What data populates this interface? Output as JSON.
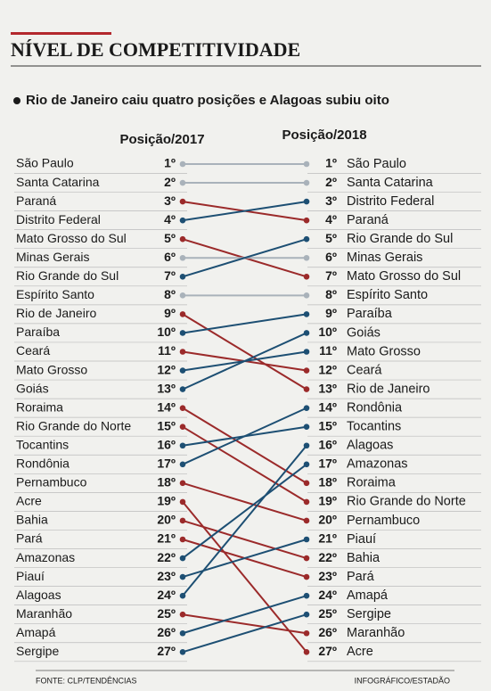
{
  "chart_data": {
    "type": "slope",
    "title": "NÍVEL DE COMPETITIVIDADE",
    "subtitle": "Rio de Janeiro caiu quatro posições e Alagoas subiu oito",
    "source": "FONTE: CLP/TENDÊNCIAS",
    "credit": "INFOGRÁFICO/ESTADÃO",
    "categories": [
      "São Paulo",
      "Santa Catarina",
      "Paraná",
      "Distrito Federal",
      "Mato Grosso do Sul",
      "Minas Gerais",
      "Rio Grande do Sul",
      "Espírito Santo",
      "Rio de Janeiro",
      "Paraíba",
      "Ceará",
      "Mato Grosso",
      "Goiás",
      "Roraima",
      "Rio Grande do Norte",
      "Tocantins",
      "Rondônia",
      "Pernambuco",
      "Acre",
      "Bahia",
      "Pará",
      "Amazonas",
      "Piauí",
      "Alagoas",
      "Maranhão",
      "Amapá",
      "Sergipe"
    ],
    "series": [
      {
        "name": "Posição/2017",
        "values": [
          1,
          2,
          3,
          4,
          5,
          6,
          7,
          8,
          9,
          10,
          11,
          12,
          13,
          14,
          15,
          16,
          17,
          18,
          19,
          20,
          21,
          22,
          23,
          24,
          25,
          26,
          27
        ],
        "value_labels": [
          "1º",
          "2º",
          "3º",
          "4º",
          "5º",
          "6º",
          "7º",
          "8º",
          "9º",
          "10º",
          "11º",
          "12º",
          "13º",
          "14º",
          "15º",
          "16º",
          "17º",
          "18º",
          "19º",
          "20º",
          "21º",
          "22º",
          "23º",
          "24º",
          "25º",
          "26º",
          "27º"
        ]
      },
      {
        "name": "Posição/2018",
        "values": [
          1,
          2,
          4,
          3,
          7,
          6,
          5,
          8,
          13,
          9,
          12,
          11,
          10,
          18,
          19,
          15,
          14,
          20,
          27,
          22,
          23,
          17,
          21,
          16,
          26,
          24,
          25
        ],
        "value_labels": [
          "1º",
          "2º",
          "4º",
          "3º",
          "7º",
          "6º",
          "5º",
          "8º",
          "13º",
          "9º",
          "12º",
          "11º",
          "10º",
          "18º",
          "19º",
          "15º",
          "14º",
          "20º",
          "27º",
          "22º",
          "23º",
          "17º",
          "21º",
          "16º",
          "26º",
          "24º",
          "25º"
        ]
      }
    ],
    "colors": {
      "up": "#1d4f73",
      "down": "#9b2a2a",
      "same": "#a9b2ba"
    }
  }
}
